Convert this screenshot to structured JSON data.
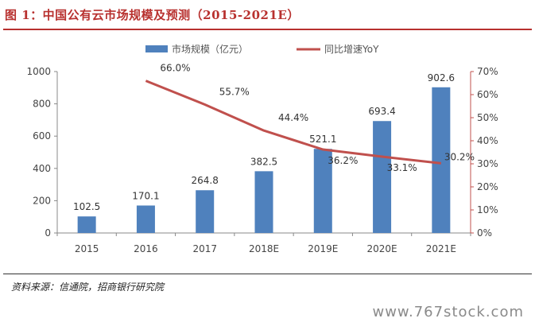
{
  "figure": {
    "title": "图 1：中国公有云市场规模及预测（2015-2021E）",
    "source": "资料来源：信通院，招商银行研究院",
    "watermark": "www.767stock.com"
  },
  "colors": {
    "bar": "#4f81bd",
    "line": "#c0504d",
    "title": "#b8312f",
    "right_axis": "#c0504d"
  },
  "chart_data": {
    "type": "bar",
    "categories": [
      "2015",
      "2016",
      "2017",
      "2018E",
      "2019E",
      "2020E",
      "2021E"
    ],
    "series": [
      {
        "name": "市场规模（亿元）",
        "type": "bar",
        "axis": "left",
        "values": [
          102.5,
          170.1,
          264.8,
          382.5,
          521.1,
          693.4,
          902.6
        ],
        "labels": [
          "102.5",
          "170.1",
          "264.8",
          "382.5",
          "521.1",
          "693.4",
          "902.6"
        ]
      },
      {
        "name": "同比增速YoY",
        "type": "line",
        "axis": "right",
        "values": [
          null,
          66.0,
          55.7,
          44.4,
          36.2,
          33.1,
          30.2
        ],
        "labels": [
          "",
          "66.0%",
          "55.7%",
          "44.4%",
          "36.2%",
          "33.1%",
          "30.2%"
        ]
      }
    ],
    "y_left": {
      "ylim": [
        0,
        1000
      ],
      "ticks": [
        "0",
        "200",
        "400",
        "600",
        "800",
        "1000"
      ]
    },
    "y_right": {
      "ylim": [
        0,
        70
      ],
      "ticks": [
        "0%",
        "10%",
        "20%",
        "30%",
        "40%",
        "50%",
        "60%",
        "70%"
      ]
    },
    "legend_position": "top",
    "grid": false
  }
}
